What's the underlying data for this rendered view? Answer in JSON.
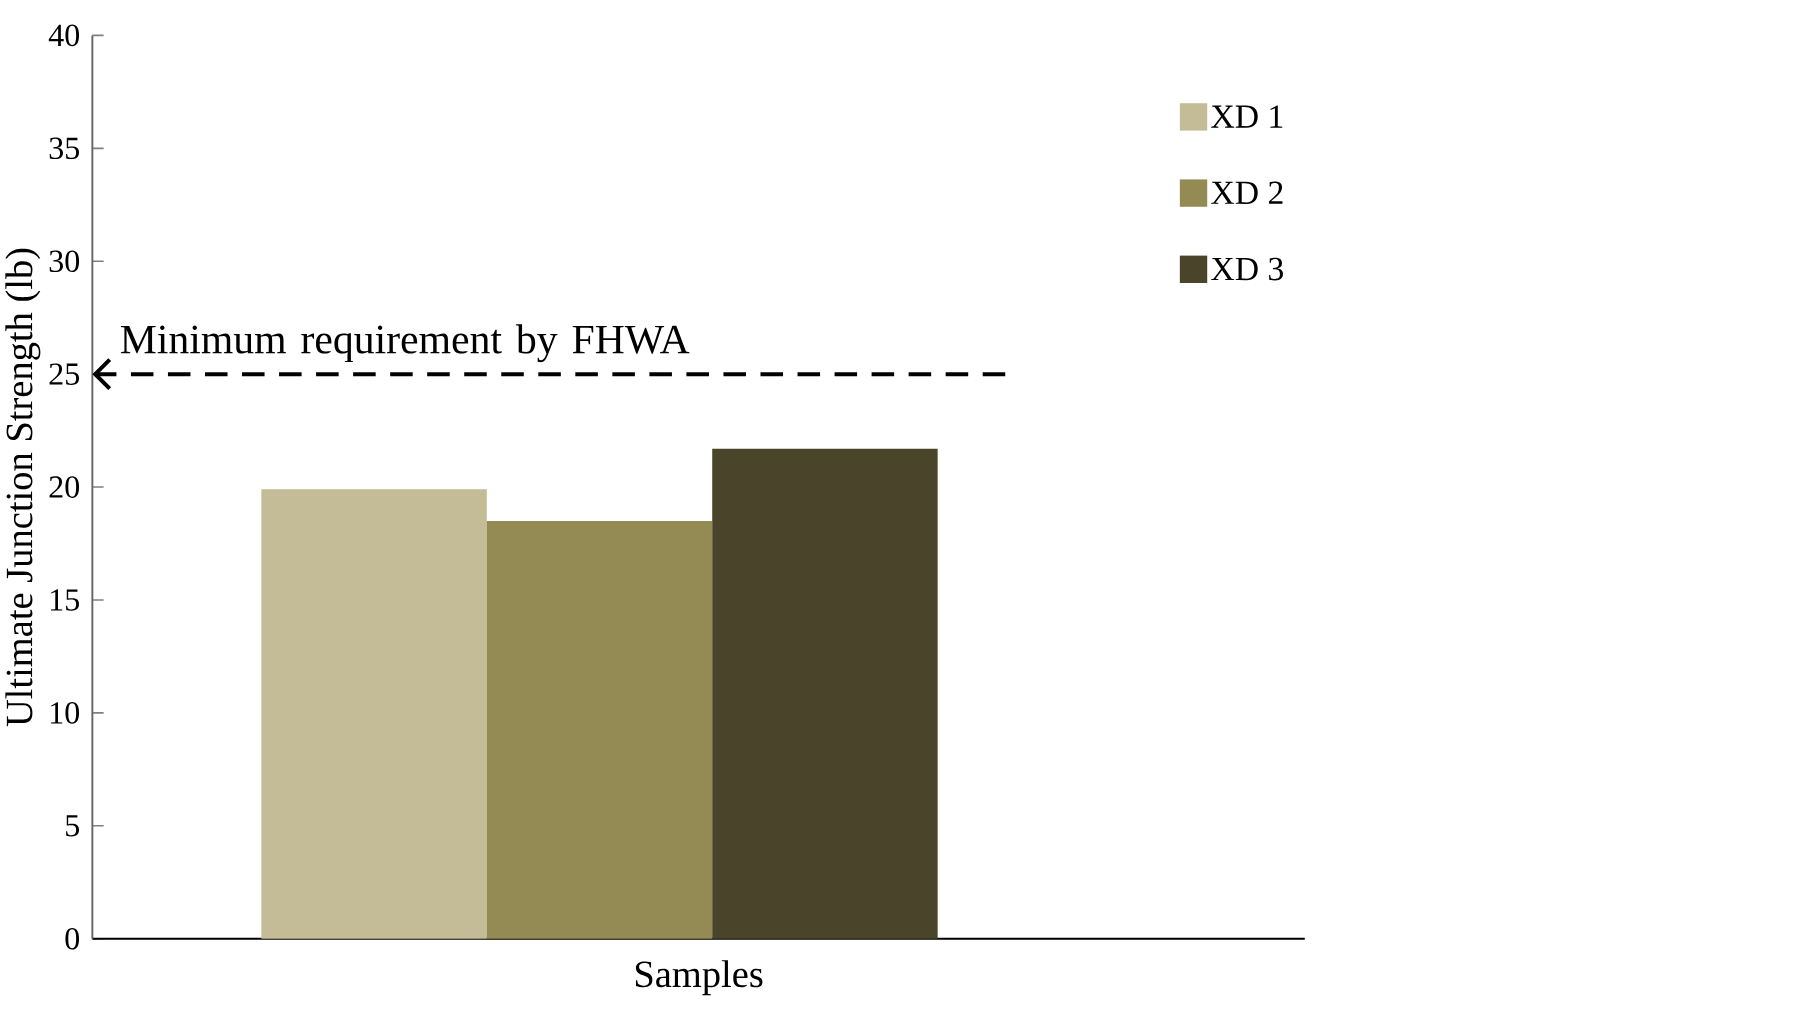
{
  "chart_data": {
    "type": "bar",
    "xlabel": "Samples",
    "ylabel": "Ultimate Junction Strength (lb)",
    "categories": [
      null
    ],
    "series": [
      {
        "name": "XD 1",
        "color": "#c4bc96",
        "values": [
          19.9
        ]
      },
      {
        "name": "XD 2",
        "color": "#948a54",
        "values": [
          18.5
        ]
      },
      {
        "name": "XD 3",
        "color": "#4a442a",
        "values": [
          21.7
        ]
      }
    ],
    "ylim": [
      0,
      40
    ],
    "yticks": [
      0,
      5,
      10,
      15,
      20,
      25,
      30,
      35,
      40
    ],
    "legend": "right",
    "ref_lines": [
      {
        "axis": "y",
        "value": 25,
        "label": "Minimum requirement by FHWA",
        "line_style": "dashed",
        "color": "#000000"
      }
    ]
  }
}
